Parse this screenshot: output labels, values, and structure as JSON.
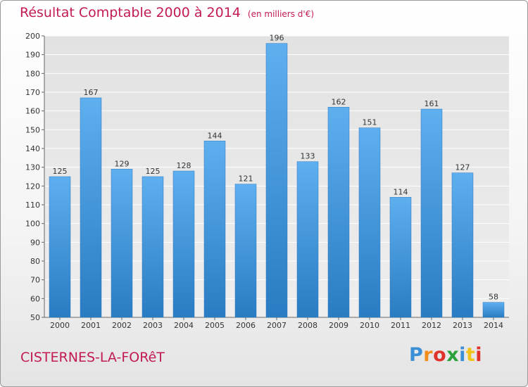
{
  "header": {
    "title": "Résultat Comptable 2000 à 2014",
    "subtitle": "(en milliers d'€)"
  },
  "footer": {
    "commune": "CISTERNES-LA-FORêT",
    "brand": "Proxiti",
    "brand_colors": [
      "#3a8fd6",
      "#f28c1a",
      "#e0312b",
      "#2aa13a",
      "#3a8fd6",
      "#f2c318",
      "#e0312b"
    ]
  },
  "chart_data": {
    "type": "bar",
    "title": "Résultat Comptable 2000 à 2014",
    "subtitle": "(en milliers d'€)",
    "xlabel": "",
    "ylabel": "",
    "categories": [
      "2000",
      "2001",
      "2002",
      "2003",
      "2004",
      "2005",
      "2006",
      "2007",
      "2008",
      "2009",
      "2010",
      "2011",
      "2012",
      "2013",
      "2014"
    ],
    "values": [
      125,
      167,
      129,
      125,
      128,
      144,
      121,
      196,
      133,
      162,
      151,
      114,
      161,
      127,
      58
    ],
    "ylim": [
      50,
      200
    ],
    "yticks": [
      50,
      60,
      70,
      80,
      90,
      100,
      110,
      120,
      130,
      140,
      150,
      160,
      170,
      180,
      190,
      200
    ],
    "grid": true,
    "bar_color": "#4a9fe0",
    "bar_color_dark": "#2f7fc4",
    "plot_background": "#e6e6e6"
  }
}
